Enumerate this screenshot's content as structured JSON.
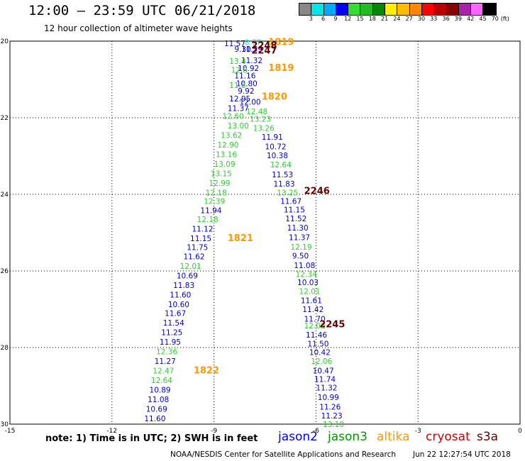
{
  "header": {
    "title": "12:00 — 23:59 UTC 06/21/2018",
    "subtitle": "12 hour collection of altimeter wave heights"
  },
  "colorbar": {
    "colors": [
      "#888888",
      "#00e6e6",
      "#00aaff",
      "#0000ff",
      "#33dd33",
      "#22bb22",
      "#008800",
      "#ffee00",
      "#ffbb00",
      "#ff8800",
      "#ff0000",
      "#bb0000",
      "#880000",
      "#aa22aa",
      "#ff66ff",
      "#000000"
    ],
    "labels": [
      "3",
      "6",
      "9",
      "12",
      "15",
      "18",
      "21",
      "24",
      "27",
      "30",
      "33",
      "36",
      "39",
      "42",
      "45",
      "70"
    ],
    "unit": "(ft)"
  },
  "footer": {
    "note": "note:  1) Time is in UTC;  2) SWH is in feet",
    "credit": "NOAA/NESDIS Center for Satellite Applications and Research",
    "timestamp": "Jun 22 12:27:54 UTC 2018"
  },
  "legend": [
    {
      "label": "jason2",
      "color": "#0000ff"
    },
    {
      "label": "jason3",
      "color": "#009900"
    },
    {
      "label": "altika",
      "color": "#ff9900"
    },
    {
      "label": "cryosat",
      "color": "#cc0000"
    },
    {
      "label": "s3a",
      "color": "#660000"
    }
  ],
  "chart_data": {
    "type": "scatter",
    "xlim": [
      -15,
      0
    ],
    "ylim": [
      -30,
      -20
    ],
    "xticks": [
      -15,
      -12,
      -9,
      -6,
      -3,
      0
    ],
    "yticks": [
      -20,
      -22,
      -24,
      -26,
      -28,
      -30
    ],
    "grid": true,
    "labels": [
      {
        "x": -8.7,
        "y": -20.06,
        "text": "11.57",
        "color": "#0000cc"
      },
      {
        "x": -8.1,
        "y": -20.03,
        "text": "8.77",
        "color": "#33cccc"
      },
      {
        "x": -7.4,
        "y": -20.03,
        "text": "1819",
        "color": "#ff9900",
        "bold": true,
        "size": 13
      },
      {
        "x": -7.9,
        "y": -20.12,
        "text": "2248",
        "color": "#660000",
        "bold": true,
        "size": 13
      },
      {
        "x": -8.2,
        "y": -20.2,
        "text": "11.59",
        "color": "#0000cc"
      },
      {
        "x": -7.9,
        "y": -20.25,
        "text": "2247",
        "color": "#660000",
        "bold": true,
        "size": 13
      },
      {
        "x": -8.4,
        "y": -20.2,
        "text": "9.30",
        "color": "#0000cc"
      },
      {
        "x": -8.2,
        "y": -20.5,
        "text": "11.32",
        "color": "#0000cc"
      },
      {
        "x": -8.55,
        "y": -20.52,
        "text": "13.4",
        "color": "#33cc33"
      },
      {
        "x": -8.3,
        "y": -20.7,
        "text": "10.92",
        "color": "#0000cc"
      },
      {
        "x": -7.4,
        "y": -20.7,
        "text": "1819",
        "color": "#ff9900",
        "bold": true,
        "size": 13
      },
      {
        "x": -8.5,
        "y": -20.75,
        "text": "12.8",
        "color": "#33cc33"
      },
      {
        "x": -8.4,
        "y": -20.9,
        "text": "11.16",
        "color": "#0000cc"
      },
      {
        "x": -8.35,
        "y": -21.1,
        "text": "10.80",
        "color": "#0000cc"
      },
      {
        "x": -8.55,
        "y": -21.15,
        "text": "11.8",
        "color": "#33cc33"
      },
      {
        "x": -8.3,
        "y": -21.3,
        "text": "9.92",
        "color": "#0000cc"
      },
      {
        "x": -8.55,
        "y": -21.5,
        "text": "12.95",
        "color": "#0000cc"
      },
      {
        "x": -7.6,
        "y": -21.45,
        "text": "1820",
        "color": "#ff9900",
        "bold": true,
        "size": 13
      },
      {
        "x": -8.25,
        "y": -21.58,
        "text": "12.00",
        "color": "#0000cc"
      },
      {
        "x": -8.6,
        "y": -21.75,
        "text": "11.37",
        "color": "#0000cc"
      },
      {
        "x": -8.05,
        "y": -21.83,
        "text": "12.48",
        "color": "#33cc33"
      },
      {
        "x": -8.75,
        "y": -21.95,
        "text": "12.60",
        "color": "#33cc33"
      },
      {
        "x": -7.95,
        "y": -22.03,
        "text": "13.23",
        "color": "#33cc33"
      },
      {
        "x": -8.6,
        "y": -22.2,
        "text": "13.00",
        "color": "#33cc33"
      },
      {
        "x": -7.85,
        "y": -22.27,
        "text": "13.26",
        "color": "#33cc33"
      },
      {
        "x": -8.8,
        "y": -22.45,
        "text": "13.62",
        "color": "#33cc33"
      },
      {
        "x": -7.6,
        "y": -22.5,
        "text": "11.91",
        "color": "#0000cc"
      },
      {
        "x": -8.9,
        "y": -22.7,
        "text": "12.90",
        "color": "#33cc33"
      },
      {
        "x": -7.5,
        "y": -22.75,
        "text": "10.72",
        "color": "#0000cc"
      },
      {
        "x": -8.95,
        "y": -22.95,
        "text": "13.16",
        "color": "#33cc33"
      },
      {
        "x": -7.45,
        "y": -22.98,
        "text": "10.38",
        "color": "#0000cc"
      },
      {
        "x": -9.0,
        "y": -23.2,
        "text": "13.09",
        "color": "#33cc33"
      },
      {
        "x": -7.35,
        "y": -23.22,
        "text": "12.64",
        "color": "#33cc33"
      },
      {
        "x": -9.1,
        "y": -23.45,
        "text": "13.15",
        "color": "#33cc33"
      },
      {
        "x": -7.3,
        "y": -23.48,
        "text": "11.53",
        "color": "#0000cc"
      },
      {
        "x": -9.15,
        "y": -23.7,
        "text": "12.99",
        "color": "#33cc33"
      },
      {
        "x": -7.25,
        "y": -23.72,
        "text": "11.83",
        "color": "#0000cc"
      },
      {
        "x": -9.25,
        "y": -23.95,
        "text": "12.18",
        "color": "#33cc33"
      },
      {
        "x": -7.15,
        "y": -23.95,
        "text": "13.25",
        "color": "#33cc33"
      },
      {
        "x": -6.35,
        "y": -23.92,
        "text": "2246",
        "color": "#660000",
        "bold": true,
        "size": 13
      },
      {
        "x": -9.3,
        "y": -24.18,
        "text": "12.39",
        "color": "#33cc33"
      },
      {
        "x": -7.05,
        "y": -24.18,
        "text": "11.67",
        "color": "#0000cc"
      },
      {
        "x": -9.4,
        "y": -24.42,
        "text": "11.94",
        "color": "#0000cc"
      },
      {
        "x": -6.95,
        "y": -24.4,
        "text": "11.15",
        "color": "#0000cc"
      },
      {
        "x": -9.5,
        "y": -24.65,
        "text": "12.18",
        "color": "#33cc33"
      },
      {
        "x": -6.9,
        "y": -24.63,
        "text": "11.52",
        "color": "#0000cc"
      },
      {
        "x": -9.65,
        "y": -24.9,
        "text": "11.12",
        "color": "#0000cc"
      },
      {
        "x": -6.85,
        "y": -24.87,
        "text": "11.30",
        "color": "#0000cc"
      },
      {
        "x": -9.7,
        "y": -25.15,
        "text": "11.15",
        "color": "#0000cc"
      },
      {
        "x": -8.6,
        "y": -25.15,
        "text": "1821",
        "color": "#ff9900",
        "bold": true,
        "size": 13
      },
      {
        "x": -6.8,
        "y": -25.12,
        "text": "11.37",
        "color": "#0000cc"
      },
      {
        "x": -9.8,
        "y": -25.38,
        "text": "11.75",
        "color": "#0000cc"
      },
      {
        "x": -6.75,
        "y": -25.37,
        "text": "12.19",
        "color": "#33cc33"
      },
      {
        "x": -9.9,
        "y": -25.62,
        "text": "11.62",
        "color": "#0000cc"
      },
      {
        "x": -6.7,
        "y": -25.6,
        "text": "9.50",
        "color": "#0000cc"
      },
      {
        "x": -10.0,
        "y": -25.87,
        "text": "12.01",
        "color": "#33cc33"
      },
      {
        "x": -6.65,
        "y": -25.85,
        "text": "11.08",
        "color": "#0000cc"
      },
      {
        "x": -10.1,
        "y": -26.12,
        "text": "10.69",
        "color": "#0000cc"
      },
      {
        "x": -6.6,
        "y": -26.08,
        "text": "12.34",
        "color": "#33cc33"
      },
      {
        "x": -10.2,
        "y": -26.37,
        "text": "11.83",
        "color": "#0000cc"
      },
      {
        "x": -6.55,
        "y": -26.3,
        "text": "10.03",
        "color": "#0000cc"
      },
      {
        "x": -10.3,
        "y": -26.62,
        "text": "11.60",
        "color": "#0000cc"
      },
      {
        "x": -6.5,
        "y": -26.53,
        "text": "12.01",
        "color": "#33cc33"
      },
      {
        "x": -10.35,
        "y": -26.87,
        "text": "10.60",
        "color": "#0000cc"
      },
      {
        "x": -6.45,
        "y": -26.77,
        "text": "11.61",
        "color": "#0000cc"
      },
      {
        "x": -10.45,
        "y": -27.1,
        "text": "11.67",
        "color": "#0000cc"
      },
      {
        "x": -6.4,
        "y": -27.0,
        "text": "11.42",
        "color": "#0000cc"
      },
      {
        "x": -10.5,
        "y": -27.35,
        "text": "11.54",
        "color": "#0000cc"
      },
      {
        "x": -6.35,
        "y": -27.25,
        "text": "11.70",
        "color": "#0000cc"
      },
      {
        "x": -6.35,
        "y": -27.43,
        "text": "12.08",
        "color": "#33cc33"
      },
      {
        "x": -5.9,
        "y": -27.4,
        "text": "2245",
        "color": "#660000",
        "bold": true,
        "size": 13
      },
      {
        "x": -10.55,
        "y": -27.6,
        "text": "11.25",
        "color": "#0000cc"
      },
      {
        "x": -6.3,
        "y": -27.67,
        "text": "11.46",
        "color": "#0000cc"
      },
      {
        "x": -10.6,
        "y": -27.85,
        "text": "11.95",
        "color": "#0000cc"
      },
      {
        "x": -6.25,
        "y": -27.9,
        "text": "11.50",
        "color": "#0000cc"
      },
      {
        "x": -10.7,
        "y": -28.1,
        "text": "12.36",
        "color": "#33cc33"
      },
      {
        "x": -6.2,
        "y": -28.12,
        "text": "10.42",
        "color": "#0000cc"
      },
      {
        "x": -10.75,
        "y": -28.35,
        "text": "11.27",
        "color": "#0000cc"
      },
      {
        "x": -6.15,
        "y": -28.35,
        "text": "12.06",
        "color": "#33cc33"
      },
      {
        "x": -10.8,
        "y": -28.6,
        "text": "12.47",
        "color": "#33cc33"
      },
      {
        "x": -9.6,
        "y": -28.6,
        "text": "1822",
        "color": "#ff9900",
        "bold": true,
        "size": 13
      },
      {
        "x": -6.1,
        "y": -28.6,
        "text": "10.47",
        "color": "#0000cc"
      },
      {
        "x": -10.85,
        "y": -28.85,
        "text": "12.64",
        "color": "#33cc33"
      },
      {
        "x": -6.05,
        "y": -28.82,
        "text": "11.74",
        "color": "#0000cc"
      },
      {
        "x": -10.9,
        "y": -29.1,
        "text": "10.89",
        "color": "#0000cc"
      },
      {
        "x": -6.0,
        "y": -29.05,
        "text": "11.32",
        "color": "#0000cc"
      },
      {
        "x": -10.95,
        "y": -29.35,
        "text": "11.08",
        "color": "#0000cc"
      },
      {
        "x": -5.95,
        "y": -29.3,
        "text": "10.99",
        "color": "#0000cc"
      },
      {
        "x": -11.0,
        "y": -29.6,
        "text": "10.69",
        "color": "#0000cc"
      },
      {
        "x": -5.9,
        "y": -29.55,
        "text": "11.26",
        "color": "#0000cc"
      },
      {
        "x": -11.05,
        "y": -29.85,
        "text": "11.60",
        "color": "#0000cc"
      },
      {
        "x": -5.85,
        "y": -29.78,
        "text": "11.23",
        "color": "#0000cc"
      },
      {
        "x": -5.8,
        "y": -30.0,
        "text": "13.10",
        "color": "#33cc33"
      }
    ]
  }
}
